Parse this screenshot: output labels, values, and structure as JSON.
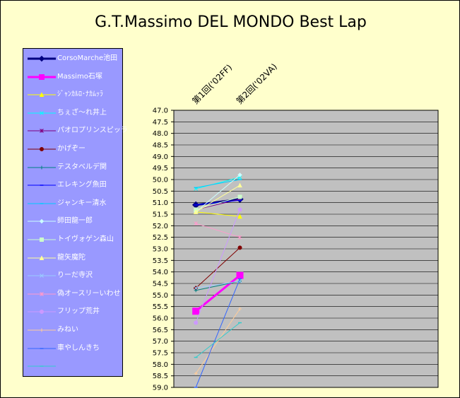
{
  "chart_data": {
    "type": "line",
    "title": "G.T.Massimo DEL MONDO Best Lap",
    "categories": [
      "第1回('02FF)",
      "第2回('02VA)"
    ],
    "ylim": [
      47.0,
      59.0
    ],
    "y_step": 0.5,
    "y_reversed": true,
    "grid": true,
    "legend_position": "left",
    "plot_background": "#c0c0c0",
    "series": [
      {
        "name": "CorsoMarche池田",
        "values": [
          51.1,
          50.85
        ],
        "color": "#000080",
        "marker": "diamond",
        "width": 3
      },
      {
        "name": "Massimo石塚",
        "values": [
          55.7,
          54.15
        ],
        "color": "#ff00ff",
        "marker": "square",
        "width": 3
      },
      {
        "name": "ｼﾞｬﾝｶﾙﾛ･ﾅｶﾑｯﾗ",
        "values": [
          51.4,
          51.6
        ],
        "color": "#ffff00",
        "marker": "triangle",
        "width": 1
      },
      {
        "name": "ちぇざ～れ井上",
        "values": [
          50.4,
          49.9
        ],
        "color": "#00ffff",
        "marker": "x",
        "width": 1
      },
      {
        "name": "パオロプリンスピッラ",
        "values": [
          51.3,
          50.85
        ],
        "color": "#800080",
        "marker": "star",
        "width": 1
      },
      {
        "name": "かげぞー",
        "values": [
          54.7,
          52.95
        ],
        "color": "#800000",
        "marker": "circle",
        "width": 1
      },
      {
        "name": "テスタベルデ関",
        "values": [
          54.8,
          54.4
        ],
        "color": "#008080",
        "marker": "plus",
        "width": 1
      },
      {
        "name": "エレキング魚田",
        "values": [
          51.1,
          50.9
        ],
        "color": "#0000ff",
        "marker": "dash",
        "width": 1
      },
      {
        "name": "ジャンキー清水",
        "values": [
          50.35,
          50.0
        ],
        "color": "#00ccff",
        "marker": "dash",
        "width": 1
      },
      {
        "name": "師田龍一郎",
        "values": [
          51.4,
          49.8
        ],
        "color": "#ccffff",
        "marker": "diamond",
        "width": 1
      },
      {
        "name": "トイヴォゲン森山",
        "values": [
          51.3,
          50.75
        ],
        "color": "#ccffcc",
        "marker": "square",
        "width": 1
      },
      {
        "name": "龍矢魔陀",
        "values": [
          51.4,
          50.25
        ],
        "color": "#ffff99",
        "marker": "triangle",
        "width": 1
      },
      {
        "name": "りーだ寺沢",
        "values": [
          54.7,
          54.4
        ],
        "color": "#99ccff",
        "marker": "x",
        "width": 1
      },
      {
        "name": "偽オースリーいわせ",
        "values": [
          51.9,
          52.5
        ],
        "color": "#ff99cc",
        "marker": "star",
        "width": 1
      },
      {
        "name": "フリップ荒井",
        "values": [
          56.2,
          51.3
        ],
        "color": "#cc99ff",
        "marker": "circle",
        "width": 1
      },
      {
        "name": "みねい",
        "values": [
          58.4,
          55.6
        ],
        "color": "#ffcc99",
        "marker": "plus",
        "width": 1
      },
      {
        "name": "車やしんきち",
        "values": [
          59.0,
          54.3
        ],
        "color": "#3366ff",
        "marker": "dash",
        "width": 1
      },
      {
        "name": "",
        "values": [
          57.7,
          56.2
        ],
        "color": "#33cccc",
        "marker": "dash",
        "width": 1
      }
    ]
  }
}
